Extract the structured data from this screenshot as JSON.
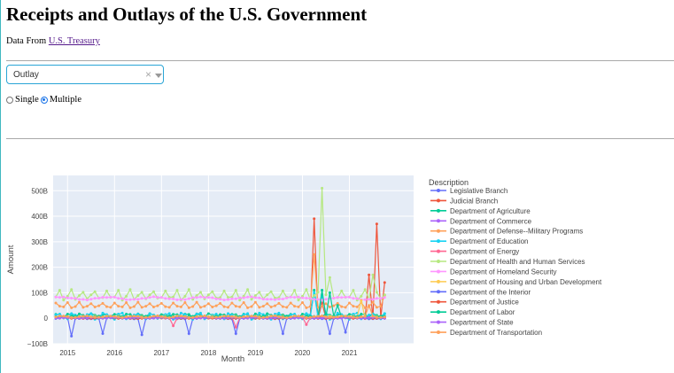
{
  "page": {
    "title": "Receipts and Outlays of the U.S. Government",
    "source_prefix": "Data From",
    "source_link": "U.S. Treasury"
  },
  "dropdown": {
    "selected": "Outlay",
    "clear_icon": "×"
  },
  "radio": {
    "options": [
      "Single",
      "Multiple"
    ],
    "selected": "Multiple"
  },
  "chart_data": {
    "type": "line",
    "xlabel": "Month",
    "ylabel": "Amount",
    "ylim": [
      -100,
      560
    ],
    "yticks": [
      -100,
      0,
      100,
      200,
      300,
      400,
      500
    ],
    "ytick_labels": [
      "−100B",
      "0",
      "100B",
      "200B",
      "300B",
      "400B",
      "500B"
    ],
    "xticks": [
      "2015",
      "2016",
      "2017",
      "2018",
      "2019",
      "2020",
      "2021"
    ],
    "x_range": [
      "2014-10",
      "2021-10"
    ],
    "legend_title": "Description",
    "series": [
      {
        "name": "Legislative Branch",
        "color": "#636efa",
        "base": 0,
        "amp": 2,
        "period": 12,
        "spikes": [
          [
            4,
            -70
          ],
          [
            12,
            -60
          ],
          [
            22,
            -65
          ],
          [
            34,
            -60
          ],
          [
            46,
            -60
          ],
          [
            58,
            -60
          ],
          [
            70,
            -60
          ],
          [
            74,
            -55
          ]
        ]
      },
      {
        "name": "Judicial Branch",
        "color": "#ef553b",
        "base": 1,
        "amp": 2,
        "period": 12,
        "spikes": [
          [
            66,
            390
          ],
          [
            68,
            60
          ],
          [
            80,
            170
          ],
          [
            82,
            370
          ],
          [
            84,
            140
          ],
          [
            86,
            170
          ],
          [
            88,
            110
          ]
        ]
      },
      {
        "name": "Department of Agriculture",
        "color": "#00cc96",
        "base": 12,
        "amp": 6,
        "period": 3,
        "spikes": [
          [
            66,
            110
          ]
        ]
      },
      {
        "name": "Department of Commerce",
        "color": "#ab63fa",
        "base": 1,
        "amp": 1,
        "period": 6,
        "spikes": []
      },
      {
        "name": "Department of Defense--Military Programs",
        "color": "#ffa15a",
        "base": 50,
        "amp": 10,
        "period": 3,
        "spikes": [
          [
            66,
            250
          ],
          [
            84,
            90
          ]
        ]
      },
      {
        "name": "Department of Education",
        "color": "#19d3f3",
        "base": 8,
        "amp": 12,
        "period": 4,
        "spikes": [
          [
            66,
            100
          ],
          [
            68,
            90
          ]
        ]
      },
      {
        "name": "Department of Energy",
        "color": "#ff6692",
        "base": 2,
        "amp": 2,
        "period": 6,
        "spikes": [
          [
            30,
            -30
          ],
          [
            46,
            -35
          ],
          [
            64,
            -25
          ]
        ]
      },
      {
        "name": "Department of Health and Human Services",
        "color": "#b6e880",
        "base": 90,
        "amp": 18,
        "period": 3,
        "spikes": [
          [
            68,
            510
          ],
          [
            70,
            160
          ],
          [
            81,
            170
          ],
          [
            88,
            165
          ]
        ]
      },
      {
        "name": "Department of Homeland Security",
        "color": "#ff97ff",
        "base": 78,
        "amp": 5,
        "period": 12,
        "spikes": []
      },
      {
        "name": "Department of Housing and Urban Development",
        "color": "#fecb52",
        "base": 5,
        "amp": 3,
        "period": 6,
        "spikes": [
          [
            78,
            70
          ]
        ]
      },
      {
        "name": "Department of the Interior",
        "color": "#636efa",
        "base": 1,
        "amp": 1,
        "period": 6,
        "spikes": []
      },
      {
        "name": "Department of Justice",
        "color": "#ef553b",
        "base": 2,
        "amp": 2,
        "period": 6,
        "spikes": []
      },
      {
        "name": "Department of Labor",
        "color": "#00cc96",
        "base": 5,
        "amp": 3,
        "period": 6,
        "spikes": [
          [
            68,
            110
          ],
          [
            70,
            100
          ],
          [
            72,
            50
          ]
        ]
      },
      {
        "name": "Department of State",
        "color": "#ab63fa",
        "base": 2,
        "amp": 1,
        "period": 6,
        "spikes": []
      },
      {
        "name": "Department of Transportation",
        "color": "#ffa15a",
        "base": 6,
        "amp": 3,
        "period": 6,
        "spikes": [
          [
            80,
            50
          ]
        ]
      }
    ]
  }
}
